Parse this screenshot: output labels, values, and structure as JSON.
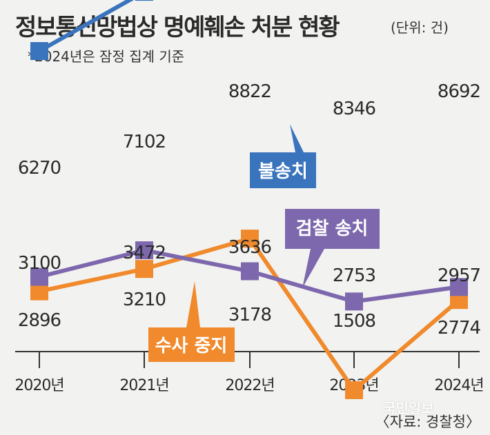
{
  "header": {
    "title": "정보통신망법상 명예훼손 처분 현황",
    "unit": "(단위: 건)",
    "note": "*2024년은 잠정 집계 기준"
  },
  "footer": {
    "source": "〈자료: 경찰청〉",
    "watermark": "국민일보"
  },
  "chart_data": {
    "type": "line",
    "categories": [
      "2020년",
      "2021년",
      "2022년",
      "2023년",
      "2024년"
    ],
    "series": [
      {
        "name": "불송치",
        "color": "#3a74bd",
        "values": [
          6270,
          7102,
          8822,
          8346,
          8692
        ]
      },
      {
        "name": "검찰 송치",
        "color": "#7d68ad",
        "values": [
          3100,
          3472,
          3178,
          2753,
          2957
        ]
      },
      {
        "name": "수사 중지",
        "color": "#f08a2c",
        "values": [
          2896,
          3210,
          3636,
          1508,
          2774
        ]
      }
    ]
  }
}
